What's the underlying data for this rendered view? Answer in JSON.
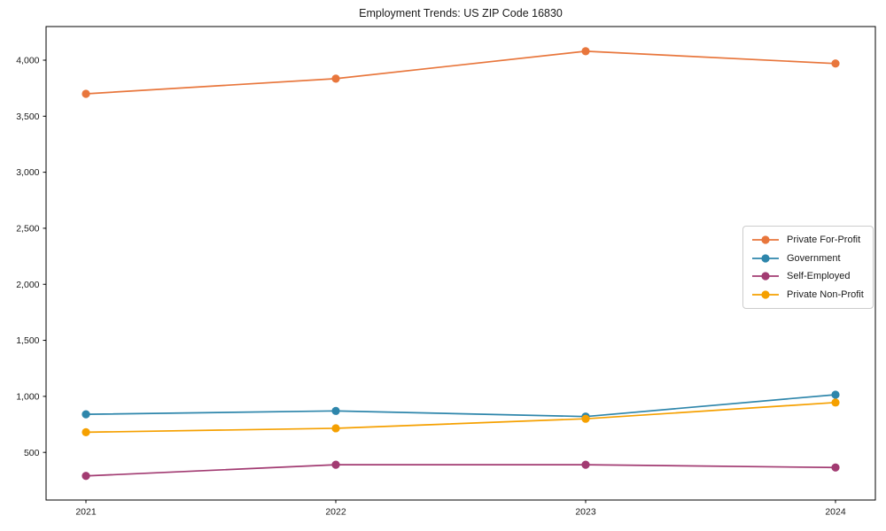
{
  "figure": {
    "background": "#ffffff",
    "axis_color": "#000000",
    "text_color": "#1a1a1a",
    "legend_border_color": "#cccccc"
  },
  "chart_data": {
    "type": "line",
    "title": "Employment Trends: US ZIP Code 16830",
    "xlabel": "",
    "ylabel": "",
    "x_labels": [
      "2021",
      "2022",
      "2023",
      "2024"
    ],
    "series": [
      {
        "name": "Private For-Profit",
        "color": "#E8763C",
        "values": [
          3700,
          3835,
          4080,
          3970
        ]
      },
      {
        "name": "Government",
        "color": "#2E86AB",
        "values": [
          840,
          870,
          820,
          1015
        ]
      },
      {
        "name": "Self-Employed",
        "color": "#A23B72",
        "values": [
          290,
          390,
          390,
          365
        ]
      },
      {
        "name": "Private Non-Profit",
        "color": "#F5A000",
        "values": [
          680,
          715,
          800,
          945
        ]
      }
    ],
    "yticks": [
      500,
      1000,
      1500,
      2000,
      2500,
      3000,
      3500,
      4000
    ],
    "ytick_labels": [
      "500",
      "1,000",
      "1,500",
      "2,000",
      "2,500",
      "3,000",
      "3,500",
      "4,000"
    ],
    "ylim": [
      75,
      4300
    ],
    "grid": false,
    "legend_position": "center right",
    "marker": "o"
  }
}
